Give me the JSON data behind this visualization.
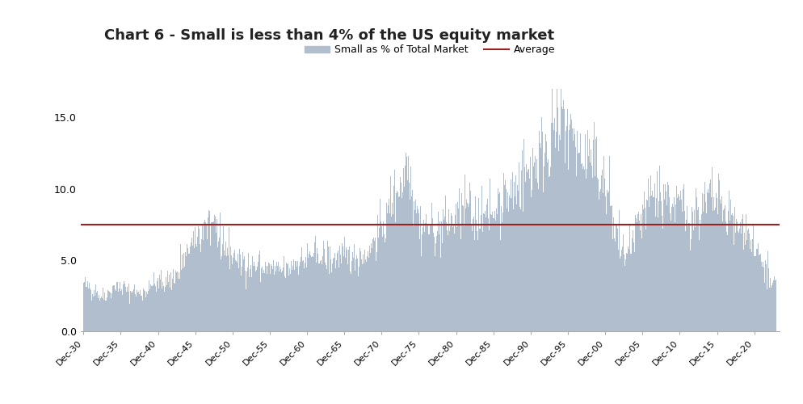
{
  "title": "Chart 6 - Small is less than 4% of the US equity market",
  "legend_bar_label": "Small as % of Total Market",
  "legend_line_label": "Average",
  "bar_color": "#b0bece",
  "bar_edge_color": "#8a9faf",
  "average_color": "#9b2020",
  "average_value": 7.5,
  "ylim": [
    0,
    17
  ],
  "yticks": [
    0.0,
    5.0,
    10.0,
    15.0
  ],
  "background_color": "#ffffff",
  "title_fontsize": 13,
  "xtick_fontsize": 8,
  "ytick_fontsize": 9
}
